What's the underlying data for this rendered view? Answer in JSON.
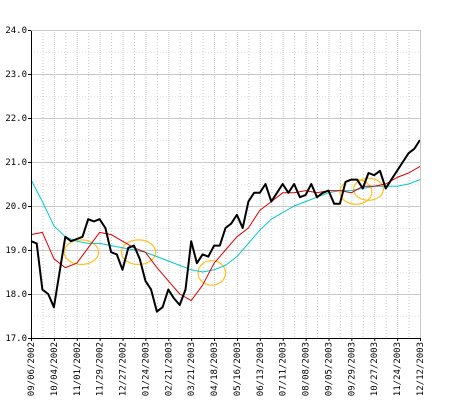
{
  "chart_data": {
    "type": "line",
    "title": "",
    "xlabel": "",
    "ylabel": "",
    "ylim": [
      17.0,
      24.0
    ],
    "y_ticks": [
      17.0,
      18.0,
      19.0,
      20.0,
      21.0,
      22.0,
      23.0,
      24.0
    ],
    "y_tick_labels": [
      "17.0",
      "18.0",
      "19.0",
      "20.0",
      "21.0",
      "22.0",
      "23.0",
      "24.0"
    ],
    "x_tick_labels": [
      "09/06/2002",
      "10/04/2002",
      "11/01/2002",
      "11/29/2002",
      "12/27/2002",
      "01/24/2003",
      "02/21/2003",
      "03/21/2003",
      "04/18/2003",
      "05/16/2003",
      "06/13/2003",
      "07/11/2003",
      "08/08/2003",
      "09/05/2003",
      "09/29/2003",
      "10/27/2003",
      "11/24/2003",
      "12/12/2003"
    ],
    "grid": true,
    "legend": "none",
    "series": [
      {
        "color": "#000000",
        "x": [
          0,
          0.25,
          0.5,
          0.75,
          1,
          1.25,
          1.5,
          1.75,
          2,
          2.25,
          2.5,
          2.75,
          3,
          3.25,
          3.5,
          3.75,
          4,
          4.25,
          4.5,
          4.75,
          5,
          5.25,
          5.5,
          5.75,
          6,
          6.25,
          6.5,
          6.75,
          7,
          7.25,
          7.5,
          7.75,
          8,
          8.25,
          8.5,
          8.75,
          9,
          9.25,
          9.5,
          9.75,
          10,
          10.25,
          10.5,
          10.75,
          11,
          11.25,
          11.5,
          11.75,
          12,
          12.25,
          12.5,
          12.75,
          13,
          13.25,
          13.5,
          13.75,
          14,
          14.25,
          14.5,
          14.75,
          15,
          15.25,
          15.5,
          15.75,
          16,
          16.25,
          16.5,
          16.75,
          17
        ],
        "values": [
          19.2,
          19.15,
          18.1,
          18.0,
          17.7,
          18.5,
          19.3,
          19.2,
          19.25,
          19.3,
          19.7,
          19.65,
          19.7,
          19.5,
          18.95,
          18.9,
          18.55,
          19.05,
          19.1,
          18.8,
          18.3,
          18.1,
          17.6,
          17.7,
          18.1,
          17.9,
          17.75,
          18.1,
          19.2,
          18.7,
          18.9,
          18.85,
          19.1,
          19.1,
          19.5,
          19.6,
          19.8,
          19.5,
          20.1,
          20.3,
          20.3,
          20.5,
          20.1,
          20.3,
          20.5,
          20.3,
          20.5,
          20.2,
          20.25,
          20.5,
          20.2,
          20.3,
          20.35,
          20.05,
          20.05,
          20.55,
          20.6,
          20.6,
          20.4,
          20.75,
          20.7,
          20.8,
          20.4,
          20.6,
          20.8,
          21.0,
          21.2,
          21.3,
          21.5
        ]
      },
      {
        "color": "#dd0000",
        "x": [
          0,
          0.5,
          1,
          1.5,
          2,
          2.5,
          3,
          3.5,
          4,
          4.5,
          5,
          5.5,
          6,
          6.5,
          7,
          7.5,
          8,
          8.5,
          9,
          9.5,
          10,
          10.5,
          11,
          11.5,
          12,
          12.5,
          13,
          13.5,
          14,
          14.5,
          15,
          15.5,
          16,
          16.5,
          17
        ],
        "values": [
          19.35,
          19.4,
          18.8,
          18.6,
          18.7,
          19.05,
          19.4,
          19.35,
          19.2,
          19.05,
          18.95,
          18.6,
          18.3,
          18.0,
          17.85,
          18.2,
          18.7,
          19.0,
          19.3,
          19.5,
          19.9,
          20.1,
          20.3,
          20.3,
          20.35,
          20.3,
          20.35,
          20.35,
          20.3,
          20.45,
          20.45,
          20.5,
          20.65,
          20.75,
          20.9
        ]
      },
      {
        "color": "#00c8d0",
        "x": [
          0,
          0.5,
          1,
          1.5,
          2,
          2.5,
          3,
          3.5,
          4,
          4.5,
          5,
          5.5,
          6,
          6.5,
          7,
          7.5,
          8,
          8.5,
          9,
          9.5,
          10,
          10.5,
          11,
          11.5,
          12,
          12.5,
          13,
          13.5,
          14,
          14.5,
          15,
          15.5,
          16,
          16.5,
          17
        ],
        "values": [
          20.6,
          20.1,
          19.55,
          19.3,
          19.2,
          19.15,
          19.15,
          19.1,
          19.05,
          19.0,
          18.95,
          18.85,
          18.75,
          18.65,
          18.55,
          18.5,
          18.55,
          18.65,
          18.85,
          19.15,
          19.45,
          19.7,
          19.85,
          20.0,
          20.1,
          20.2,
          20.3,
          20.35,
          20.35,
          20.4,
          20.45,
          20.45,
          20.45,
          20.5,
          20.6
        ]
      }
    ],
    "annotations": [
      {
        "type": "ellipse",
        "color": "#ffc020",
        "cx": 2.2,
        "cy": 18.95,
        "rx": 0.75,
        "ry": 0.28
      },
      {
        "type": "ellipse",
        "color": "#ffc020",
        "cx": 4.7,
        "cy": 18.95,
        "rx": 0.75,
        "ry": 0.28
      },
      {
        "type": "ellipse",
        "color": "#ffc020",
        "cx": 7.9,
        "cy": 18.48,
        "rx": 0.6,
        "ry": 0.28
      },
      {
        "type": "ellipse",
        "color": "#ffc020",
        "cx": 14.2,
        "cy": 20.32,
        "rx": 0.7,
        "ry": 0.28
      },
      {
        "type": "ellipse",
        "color": "#ffc020",
        "cx": 14.75,
        "cy": 20.38,
        "rx": 0.65,
        "ry": 0.25
      }
    ],
    "colors": {
      "grid": "#c8c8c8",
      "axis": "#000000",
      "background": "#ffffff"
    }
  }
}
